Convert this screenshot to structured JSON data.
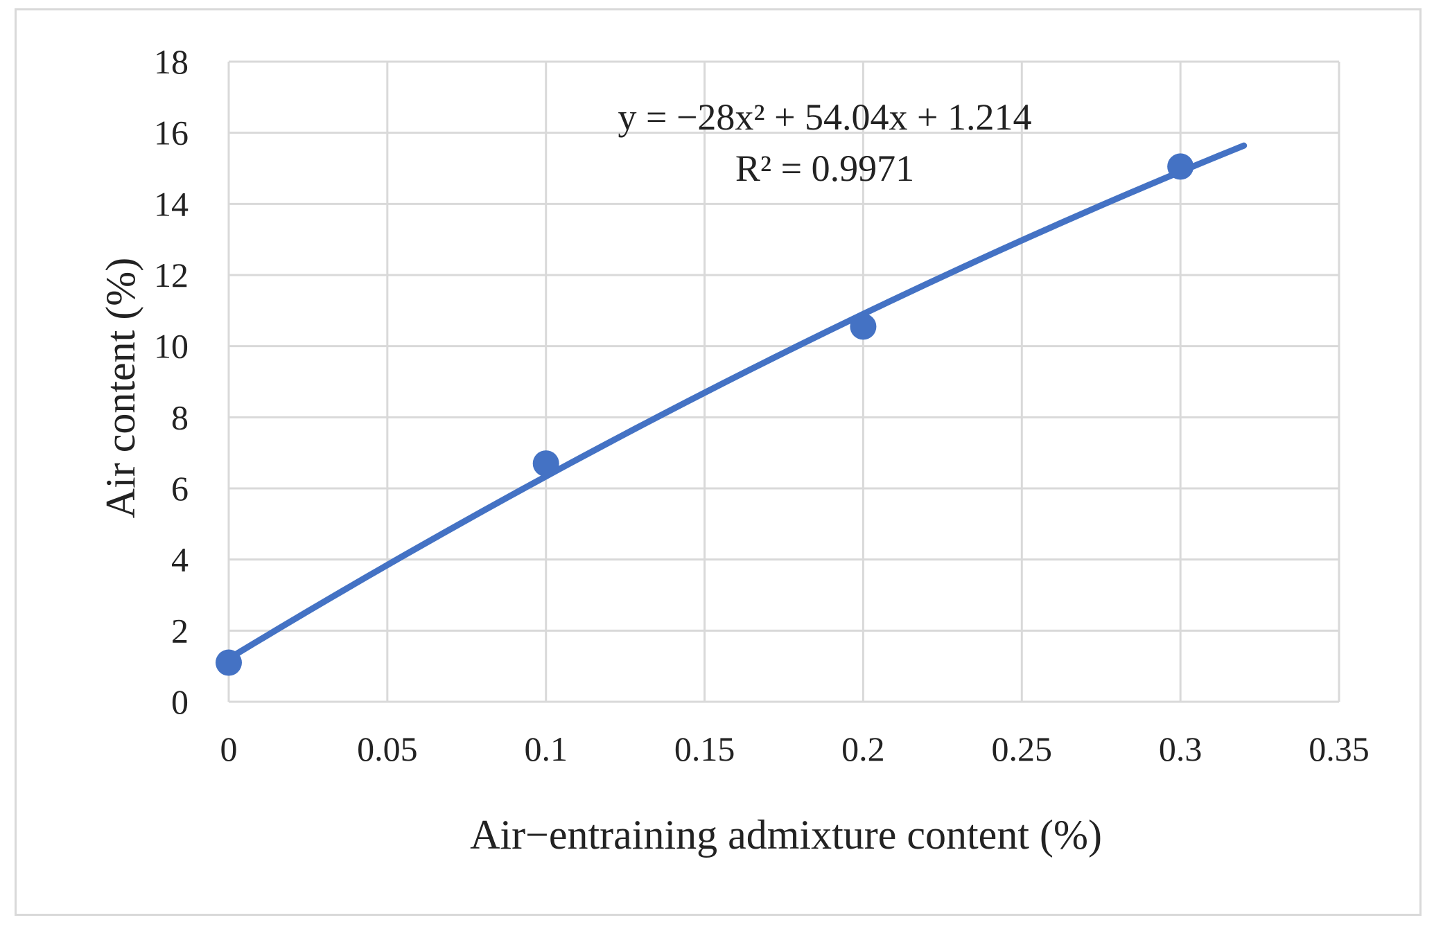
{
  "chart_data": {
    "type": "scatter",
    "title": "",
    "xlabel": "Air−entraining admixture content (%)",
    "ylabel": "Air content (%)",
    "xlim": [
      0,
      0.35
    ],
    "ylim": [
      0,
      18
    ],
    "x_ticks": [
      "0",
      "0.05",
      "0.1",
      "0.15",
      "0.2",
      "0.25",
      "0.3",
      "0.35"
    ],
    "y_ticks": [
      "0",
      "2",
      "4",
      "6",
      "8",
      "10",
      "12",
      "14",
      "16",
      "18"
    ],
    "grid": true,
    "series": [
      {
        "points": [
          {
            "x": 0,
            "y": 1.1
          },
          {
            "x": 0.1,
            "y": 6.7
          },
          {
            "x": 0.2,
            "y": 10.55
          },
          {
            "x": 0.3,
            "y": 15.05
          }
        ],
        "color": "#4472C4"
      }
    ],
    "trendline": {
      "type": "polynomial",
      "coefficients": {
        "a": -28,
        "b": 54.04,
        "c": 1.214
      },
      "x_range": [
        0,
        0.32
      ],
      "color": "#4472C4",
      "equation_text": "y = −28x² + 54.04x + 1.214",
      "r2_text": "R² = 0.9971"
    }
  }
}
